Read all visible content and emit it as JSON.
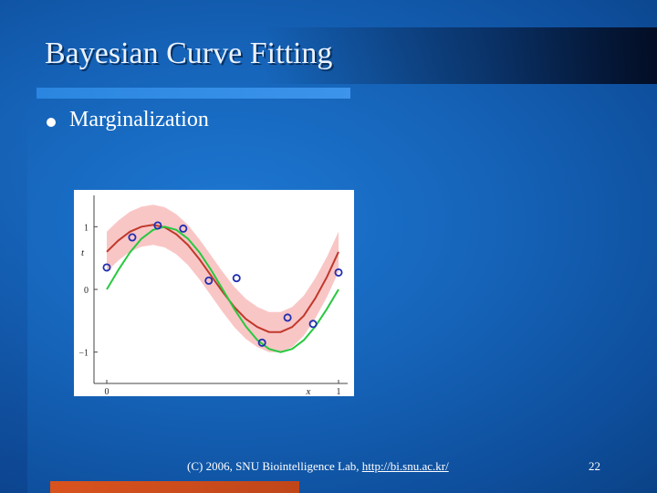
{
  "slide": {
    "title": "Bayesian Curve Fitting",
    "bullet": "Marginalization"
  },
  "footer": {
    "copyright": "(C) 2006, SNU Biointelligence Lab, ",
    "link_text": "http://bi.snu.ac.kr/",
    "page_number": "22"
  },
  "chart_data": {
    "type": "line",
    "xlabel": "x",
    "ylabel": "t",
    "xlim": [
      0,
      1
    ],
    "ylim": [
      -1.5,
      1.5
    ],
    "x_ticks": [
      "0",
      "1"
    ],
    "y_ticks": [
      "1",
      "0",
      "−1"
    ],
    "points": [
      {
        "x": 0.0,
        "y": 0.35
      },
      {
        "x": 0.11,
        "y": 0.83
      },
      {
        "x": 0.22,
        "y": 1.02
      },
      {
        "x": 0.33,
        "y": 0.97
      },
      {
        "x": 0.44,
        "y": 0.14
      },
      {
        "x": 0.56,
        "y": 0.18
      },
      {
        "x": 0.67,
        "y": -0.85
      },
      {
        "x": 0.78,
        "y": -0.45
      },
      {
        "x": 0.89,
        "y": -0.55
      },
      {
        "x": 1.0,
        "y": 0.27
      }
    ],
    "series": [
      {
        "values_x": [
          0.0,
          0.05,
          0.1,
          0.15,
          0.2,
          0.25,
          0.3,
          0.35,
          0.4,
          0.45,
          0.5,
          0.55,
          0.6,
          0.65,
          0.7,
          0.75,
          0.8,
          0.85,
          0.9,
          0.95,
          1.0
        ],
        "values_y": [
          0.6,
          0.78,
          0.92,
          1.0,
          1.03,
          0.99,
          0.88,
          0.71,
          0.48,
          0.22,
          -0.04,
          -0.28,
          -0.47,
          -0.6,
          -0.68,
          -0.68,
          -0.6,
          -0.42,
          -0.14,
          0.2,
          0.6
        ],
        "color": "#c0392b",
        "band": 0.32,
        "band_color": "#f9c6c6"
      },
      {
        "values_x": [
          0.0,
          0.05,
          0.1,
          0.15,
          0.2,
          0.25,
          0.3,
          0.35,
          0.4,
          0.45,
          0.5,
          0.55,
          0.6,
          0.65,
          0.7,
          0.75,
          0.8,
          0.85,
          0.9,
          0.95,
          1.0
        ],
        "values_y": [
          0.0,
          0.31,
          0.59,
          0.81,
          0.95,
          1.0,
          0.95,
          0.81,
          0.59,
          0.31,
          0.0,
          -0.31,
          -0.59,
          -0.81,
          -0.95,
          -1.0,
          -0.95,
          -0.81,
          -0.59,
          -0.31,
          0.0
        ],
        "color": "#27c93f"
      }
    ],
    "point_color": "#1f2fb0"
  }
}
